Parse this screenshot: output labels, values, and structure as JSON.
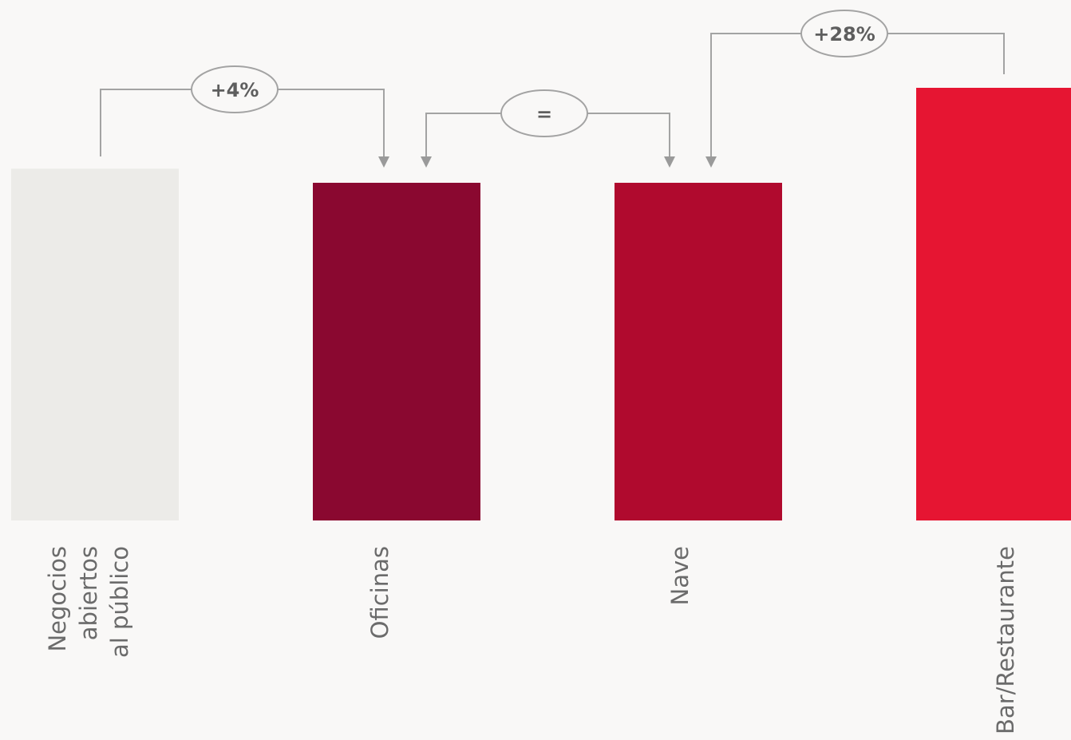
{
  "chart_data": {
    "type": "bar",
    "categories": [
      [
        "Negocios",
        "abiertos",
        "al público"
      ],
      [
        "Oficinas"
      ],
      [
        "Nave"
      ],
      [
        "Bar/Restaurante"
      ]
    ],
    "values": [
      100,
      96,
      96,
      123
    ],
    "ylim": [
      0,
      125
    ],
    "colors": [
      "#ecebe8",
      "#8a0830",
      "#b00a2e",
      "#e61532"
    ],
    "comparisons": [
      {
        "label": "+4%",
        "from": 0,
        "to": 1
      },
      {
        "label": "=",
        "from": 1,
        "to": 2
      },
      {
        "label": "+28%",
        "from": 3,
        "to": 2
      }
    ],
    "grid": false,
    "legend": "none"
  }
}
